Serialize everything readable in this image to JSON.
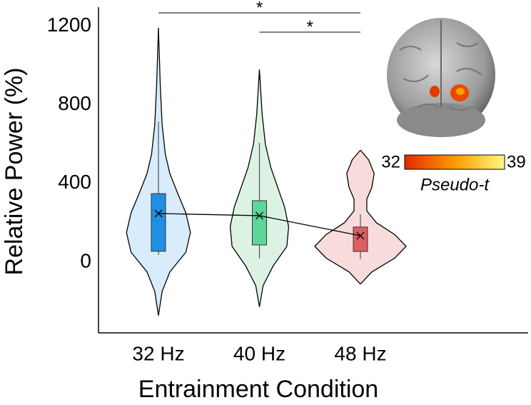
{
  "chart_data": {
    "type": "violin",
    "x_label": "Entrainment Condition",
    "y_label": "Relative Power (%)",
    "categories": [
      "32 Hz",
      "40 Hz",
      "48 Hz"
    ],
    "ylim": [
      -360,
      1300
    ],
    "yticks": [
      0,
      400,
      800,
      1200
    ],
    "violins": [
      {
        "fill": "#d8ecfb",
        "box_color": "#1f8fe3",
        "q1": 55,
        "q3": 348,
        "whisker_low": 36,
        "whisker_high": 714,
        "mean": 247,
        "kde_y": [
          -272,
          -150,
          -50,
          50,
          150,
          250,
          350,
          450,
          550,
          700,
          900,
          1190
        ],
        "kde_width": [
          0,
          0.08,
          0.25,
          0.6,
          0.7,
          0.6,
          0.42,
          0.25,
          0.15,
          0.08,
          0.04,
          0
        ]
      },
      {
        "fill": "#dcf3e3",
        "box_color": "#5ed69a",
        "q1": 87,
        "q3": 312,
        "whisker_low": 18,
        "whisker_high": 606,
        "mean": 236,
        "kde_y": [
          -228,
          -120,
          -20,
          80,
          180,
          280,
          380,
          480,
          600,
          750,
          979
        ],
        "kde_width": [
          0,
          0.08,
          0.3,
          0.6,
          0.64,
          0.55,
          0.4,
          0.25,
          0.13,
          0.06,
          0
        ]
      },
      {
        "fill": "#f8dcdc",
        "box_color": "#dd5f63",
        "q1": 54,
        "q3": 178,
        "whisker_low": 15,
        "whisker_high": 243,
        "mean": 134,
        "kde_y": [
          -112,
          -50,
          20,
          80,
          140,
          200,
          260,
          320,
          380,
          450,
          520,
          569
        ],
        "kde_width": [
          0,
          0.25,
          0.75,
          1.0,
          0.75,
          0.35,
          0.14,
          0.14,
          0.25,
          0.3,
          0.18,
          0
        ]
      }
    ],
    "significance": [
      {
        "label": "*",
        "pair": [
          0,
          2
        ]
      },
      {
        "label": "*",
        "pair": [
          1,
          2
        ]
      }
    ]
  },
  "inset": {
    "scale_min": 32,
    "scale_max": 39,
    "scale_label": "Pseudo-t"
  }
}
